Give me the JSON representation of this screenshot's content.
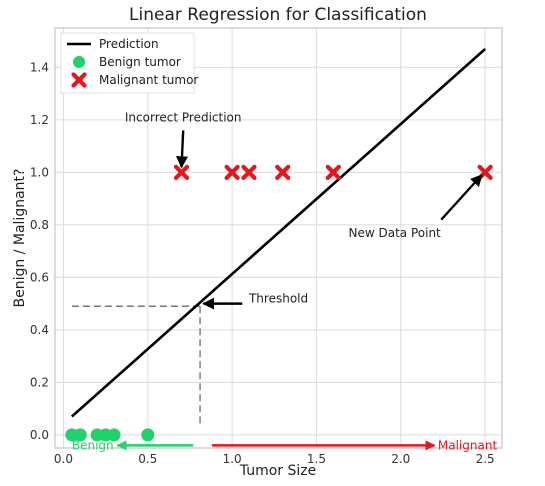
{
  "chart_data": {
    "type": "scatter",
    "title": "Linear Regression for Classification",
    "xlabel": "Tumor Size",
    "ylabel": "Benign / Malignant?",
    "xlim": [
      -0.05,
      2.6
    ],
    "ylim": [
      -0.05,
      1.55
    ],
    "xticks": [
      0.0,
      0.5,
      1.0,
      1.5,
      2.0,
      2.5
    ],
    "xtick_labels": [
      "0.0",
      "0.5",
      "1.0",
      "1.5",
      "2.0",
      "2.5"
    ],
    "yticks": [
      0.0,
      0.2,
      0.4,
      0.6,
      0.8,
      1.0,
      1.2,
      1.4
    ],
    "ytick_labels": [
      "0.0",
      "0.2",
      "0.4",
      "0.6",
      "0.8",
      "1.0",
      "1.2",
      "1.4"
    ],
    "grid": true,
    "legend_position": "top-left",
    "series": [
      {
        "name": "Prediction",
        "kind": "line",
        "color": "#000000",
        "x": [
          0.05,
          2.5
        ],
        "y": [
          0.07,
          1.47
        ]
      },
      {
        "name": "Benign tumor",
        "kind": "scatter",
        "marker": "circle",
        "color": "#1fd36b",
        "x": [
          0.05,
          0.1,
          0.2,
          0.25,
          0.3,
          0.5
        ],
        "y": [
          0,
          0,
          0,
          0,
          0,
          0
        ]
      },
      {
        "name": "Malignant tumor",
        "kind": "scatter",
        "marker": "x",
        "color": "#e8141e",
        "x": [
          0.7,
          1.0,
          1.1,
          1.3,
          1.6,
          2.5
        ],
        "y": [
          1,
          1,
          1,
          1,
          1,
          1
        ]
      }
    ],
    "threshold": {
      "x": 0.81,
      "y": 0.49,
      "color": "#777777"
    },
    "annotations": [
      {
        "text": "Incorrect Prediction",
        "text_at": [
          0.71,
          1.21
        ],
        "arrow_from": [
          0.71,
          1.16
        ],
        "arrow_to": [
          0.7,
          1.02
        ]
      },
      {
        "text": "New Data Point",
        "text_at": [
          1.69,
          0.77
        ],
        "arrow_from": [
          2.24,
          0.82
        ],
        "arrow_to": [
          2.48,
          0.99
        ]
      },
      {
        "text": "Threshold",
        "text_at": [
          1.1,
          0.52
        ],
        "arrow_from": [
          1.06,
          0.5
        ],
        "arrow_to": [
          0.83,
          0.5
        ]
      }
    ],
    "region_labels": [
      {
        "text": "Benign",
        "color": "#1fd36b",
        "arrow_from": [
          0.77,
          -0.04
        ],
        "arrow_to": [
          0.32,
          -0.04
        ],
        "text_at": [
          0.05,
          -0.04
        ]
      },
      {
        "text": "Malignant",
        "color": "#e8141e",
        "arrow_from": [
          0.88,
          -0.04
        ],
        "arrow_to": [
          2.2,
          -0.04
        ],
        "text_at": [
          2.22,
          -0.04
        ]
      }
    ]
  }
}
